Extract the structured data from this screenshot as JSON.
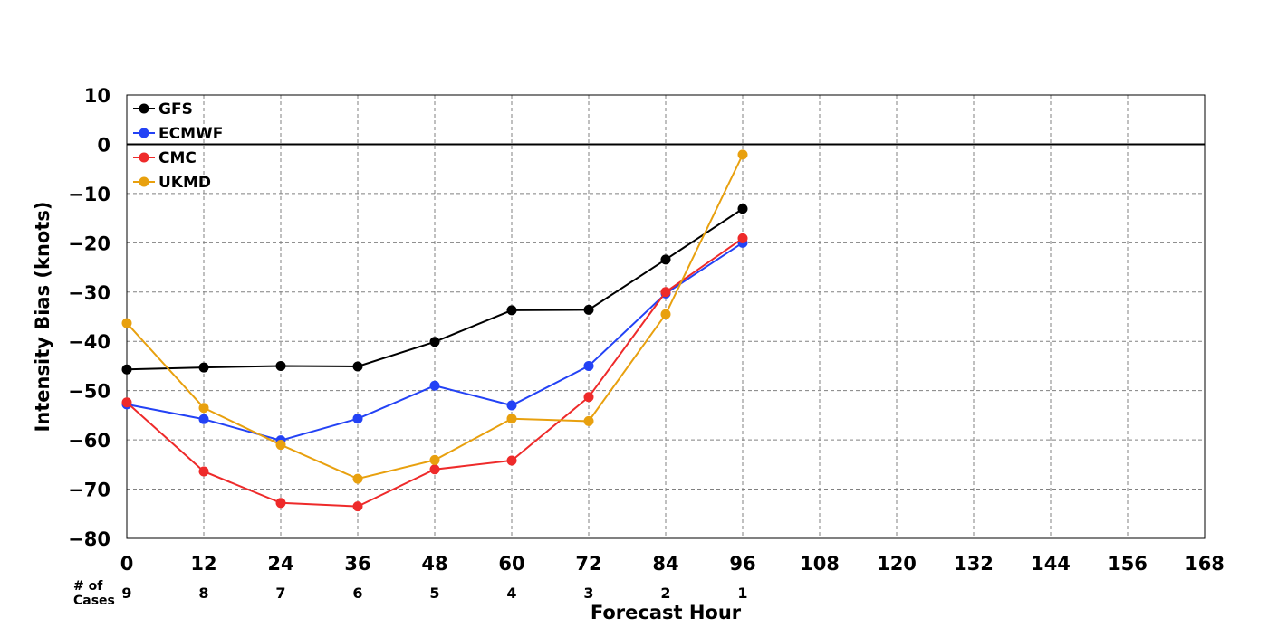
{
  "chart_data": {
    "type": "line",
    "title": "",
    "xlabel": "Forecast Hour",
    "ylabel": "Intensity Bias (knots)",
    "xlim": [
      0,
      168
    ],
    "ylim": [
      -80,
      10
    ],
    "x_ticks": [
      0,
      12,
      24,
      36,
      48,
      60,
      72,
      84,
      96,
      108,
      120,
      132,
      144,
      156,
      168
    ],
    "y_ticks": [
      10,
      0,
      -10,
      -20,
      -30,
      -40,
      -50,
      -60,
      -70,
      -80
    ],
    "grid": true,
    "zero_line": true,
    "legend_position": "top-left",
    "cases": {
      "label": "# of Cases",
      "x": [
        0,
        12,
        24,
        36,
        48,
        60,
        72,
        84,
        96
      ],
      "values": [
        9,
        8,
        7,
        6,
        5,
        4,
        3,
        2,
        1
      ]
    },
    "series": [
      {
        "name": "GFS",
        "color": "#000000",
        "x": [
          0,
          12,
          24,
          36,
          48,
          60,
          72,
          84,
          96
        ],
        "values": [
          -45.7,
          -45.3,
          -45.0,
          -45.1,
          -40.1,
          -33.7,
          -33.6,
          -23.4,
          -13.1
        ]
      },
      {
        "name": "ECMWF",
        "color": "#2342f5",
        "x": [
          0,
          12,
          24,
          36,
          48,
          60,
          72,
          84,
          96
        ],
        "values": [
          -52.8,
          -55.8,
          -60.1,
          -55.7,
          -49.0,
          -53.0,
          -45.0,
          -30.3,
          -20.0
        ]
      },
      {
        "name": "CMC",
        "color": "#ee2a2a",
        "x": [
          0,
          12,
          24,
          36,
          48,
          60,
          72,
          84,
          96
        ],
        "values": [
          -52.4,
          -66.4,
          -72.8,
          -73.5,
          -66.0,
          -64.2,
          -51.3,
          -30.0,
          -19.1
        ]
      },
      {
        "name": "UKMD",
        "color": "#e8a00e",
        "x": [
          0,
          12,
          24,
          36,
          48,
          60,
          72,
          84,
          96
        ],
        "values": [
          -36.3,
          -53.5,
          -61.0,
          -67.9,
          -64.1,
          -55.7,
          -56.2,
          -34.5,
          -2.1
        ]
      }
    ]
  }
}
